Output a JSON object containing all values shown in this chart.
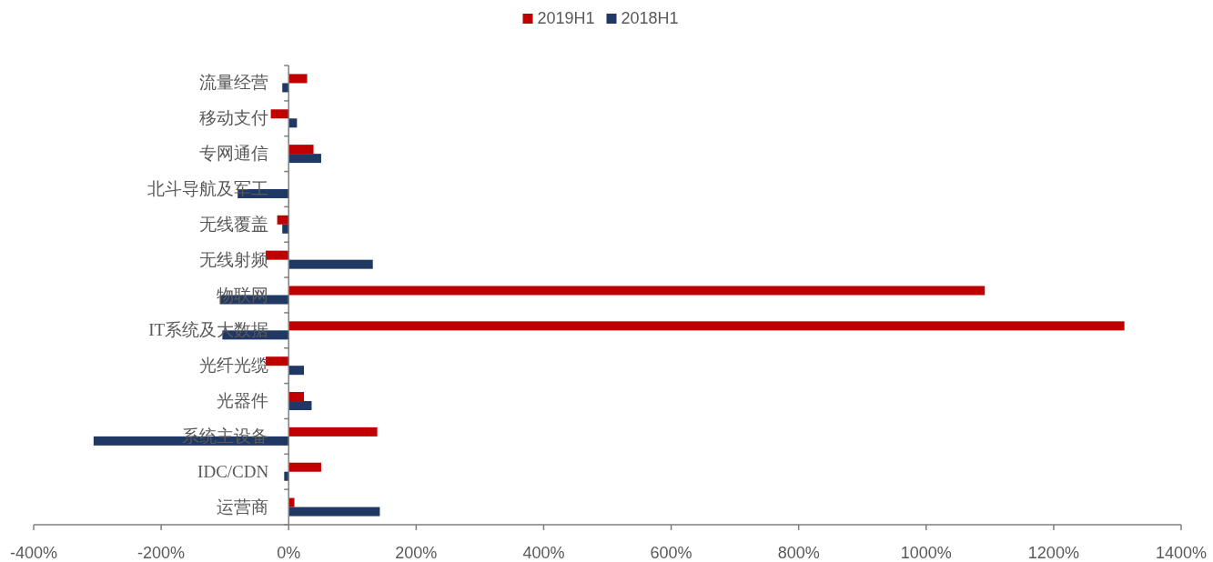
{
  "chart_data": {
    "type": "bar",
    "orientation": "horizontal",
    "categories": [
      "流量经营",
      "移动支付",
      "专网通信",
      "北斗导航及军工",
      "无线覆盖",
      "无线射频",
      "物联网",
      "IT系统及大数据",
      "光纤光缆",
      "光器件",
      "系统主设备",
      "IDC/CDN",
      "运营商"
    ],
    "series": [
      {
        "name": "2019H1",
        "color": "#c00000",
        "values": [
          29,
          -28,
          39,
          0,
          -18,
          -36,
          1092,
          1311,
          -36,
          24,
          139,
          51,
          9
        ]
      },
      {
        "name": "2018H1",
        "color": "#1f3864",
        "values": [
          -10,
          13,
          51,
          -80,
          -10,
          132,
          -108,
          -104,
          24,
          36,
          -306,
          -7,
          143
        ]
      }
    ],
    "xlim": [
      -400,
      1400
    ],
    "xticks": [
      {
        "value": -400,
        "label": "-400%"
      },
      {
        "value": -200,
        "label": "-200%"
      },
      {
        "value": 0,
        "label": "0%"
      },
      {
        "value": 200,
        "label": "200%"
      },
      {
        "value": 400,
        "label": "400%"
      },
      {
        "value": 600,
        "label": "600%"
      },
      {
        "value": 800,
        "label": "800%"
      },
      {
        "value": 1000,
        "label": "1000%"
      },
      {
        "value": 1200,
        "label": "1200%"
      },
      {
        "value": 1400,
        "label": "1400%"
      }
    ],
    "grid": false,
    "legend": "top"
  }
}
